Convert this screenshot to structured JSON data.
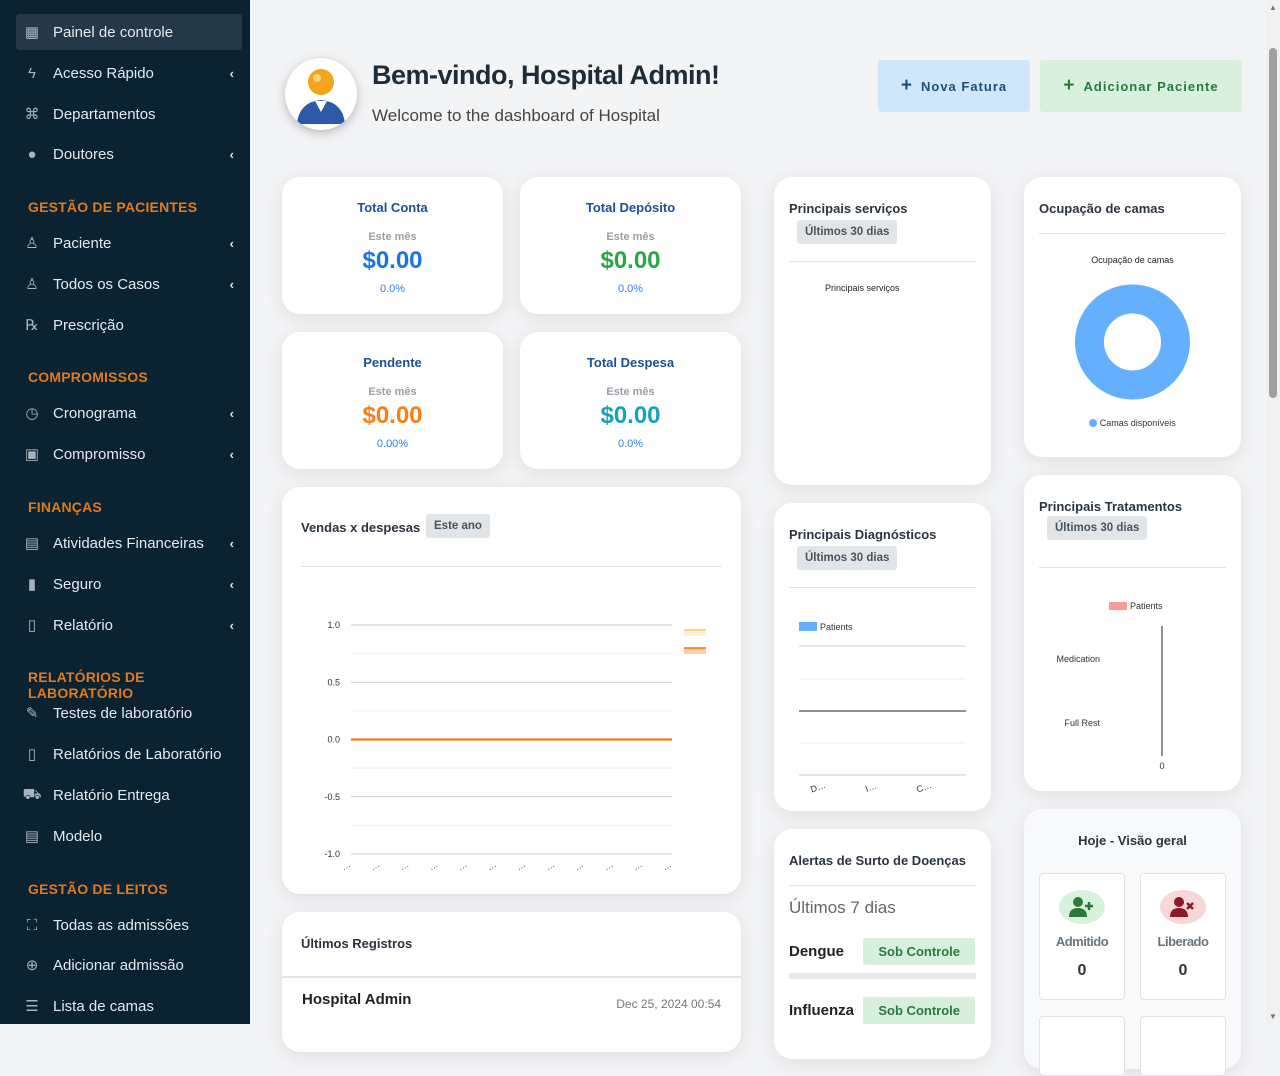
{
  "sidebar": {
    "items": [
      {
        "label": "Painel de controle",
        "icon": "grid-icon",
        "active": true,
        "chevron": false
      },
      {
        "label": "Acesso Rápido",
        "icon": "bolt-icon",
        "chevron": true
      },
      {
        "label": "Departamentos",
        "icon": "sitemap-icon",
        "chevron": false
      },
      {
        "label": "Doutores",
        "icon": "doctor-icon",
        "chevron": true
      },
      {
        "label": "Paciente",
        "icon": "user-icon",
        "chevron": true
      },
      {
        "label": "Todos os Casos",
        "icon": "user-icon",
        "chevron": true
      },
      {
        "label": "Prescrição",
        "icon": "prescription-icon",
        "chevron": false
      },
      {
        "label": "Cronograma",
        "icon": "clock-icon",
        "chevron": true
      },
      {
        "label": "Compromisso",
        "icon": "calendar-check-icon",
        "chevron": true
      },
      {
        "label": "Atividades Financeiras",
        "icon": "money-icon",
        "chevron": true
      },
      {
        "label": "Seguro",
        "icon": "file-icon",
        "chevron": true
      },
      {
        "label": "Relatório",
        "icon": "file-medical-icon",
        "chevron": true
      },
      {
        "label": "Testes de laboratório",
        "icon": "eyedropper-icon",
        "chevron": false
      },
      {
        "label": "Relatórios de Laboratório",
        "icon": "file-waveform-icon",
        "chevron": false
      },
      {
        "label": "Relatório Entrega",
        "icon": "truck-icon",
        "chevron": false
      },
      {
        "label": "Modelo",
        "icon": "document-icon",
        "chevron": false
      },
      {
        "label": "Todas as admissões",
        "icon": "bed-icon",
        "chevron": false
      },
      {
        "label": "Adicionar admissão",
        "icon": "plus-circle-icon",
        "chevron": false
      },
      {
        "label": "Lista de camas",
        "icon": "list-icon",
        "chevron": false
      }
    ],
    "headers": [
      "GESTÃO DE PACIENTES",
      "COMPROMISSOS",
      "FINANÇAS",
      "RELATÓRIOS DE LABORATÓRIO",
      "GESTÃO DE LEITOS"
    ]
  },
  "header": {
    "title": "Bem-vindo, Hospital Admin!",
    "subtitle": "Welcome to the dashboard of Hospital",
    "new_invoice": "Nova Fatura",
    "add_patient": "Adicionar Paciente"
  },
  "stats": [
    {
      "title": "Total Conta",
      "period": "Este mês",
      "value": "$0.00",
      "percent": "0.0%",
      "color": "#1a73e8"
    },
    {
      "title": "Total Depósito",
      "period": "Este mês",
      "value": "$0.00",
      "percent": "0.0%",
      "color": "#28a745"
    },
    {
      "title": "Pendente",
      "period": "Este mês",
      "value": "$0.00",
      "percent": "0.00%",
      "color": "#fd7e14"
    },
    {
      "title": "Total Despesa",
      "period": "Este mês",
      "value": "$0.00",
      "percent": "0.0%",
      "color": "#17a2b8"
    }
  ],
  "sales": {
    "title": "Vendas x despesas",
    "badge": "Este ano"
  },
  "records": {
    "title": "Últimos Registros",
    "name": "Hospital Admin",
    "date": "Dec 25, 2024 00:54"
  },
  "services": {
    "title": "Principais serviços",
    "badge": "Últimos 30 dias",
    "chart_title": "Principais serviços"
  },
  "beds": {
    "title": "Ocupação de camas",
    "chart_title": "Ocupação de camas",
    "legend": "Camas disponíveis"
  },
  "diagnostics": {
    "title": "Principais Diagnósticos",
    "badge": "Últimos 30 dias"
  },
  "treatments": {
    "title": "Principais Tratamentos",
    "badge": "Últimos 30 dias"
  },
  "alerts": {
    "title": "Alertas de Surto de Doenças",
    "period": "Últimos 7 dias",
    "items": [
      {
        "name": "Dengue",
        "status": "Sob Controle"
      },
      {
        "name": "Influenza",
        "status": "Sob Controle"
      }
    ]
  },
  "today": {
    "title": "Hoje - Visão geral",
    "admitted": {
      "label": "Admitido",
      "value": "0"
    },
    "discharged": {
      "label": "Liberado",
      "value": "0"
    }
  },
  "chart_data": [
    {
      "type": "line",
      "title": "",
      "ylim": [
        -1,
        1
      ],
      "yticks": [
        "1.0",
        "0.5",
        "0.0",
        "-0.5",
        "-1.0"
      ],
      "categories": [
        "…",
        "…",
        "…",
        "…",
        "…",
        "…",
        "…",
        "…",
        "…",
        "…",
        "…",
        "…"
      ],
      "series": [
        {
          "values": [
            0,
            0,
            0,
            0,
            0,
            0,
            0,
            0,
            0,
            0,
            0,
            0
          ],
          "color": "#ff6a00"
        },
        {
          "values": [
            0,
            0,
            0,
            0,
            0,
            0,
            0,
            0,
            0,
            0,
            0,
            0
          ],
          "color": "#ffc46b"
        }
      ],
      "grid": true,
      "legend": "right"
    },
    {
      "type": "pie",
      "title": "Ocupação de camas",
      "series": [
        {
          "name": "Camas disponíveis",
          "value": 1,
          "color": "#64b0ff"
        }
      ],
      "legend": "bottom"
    },
    {
      "type": "bar",
      "title": "",
      "series": [
        {
          "name": "Patients",
          "color": "#64b0ff",
          "values": [
            0,
            0,
            0
          ]
        }
      ],
      "categories": [
        "D…",
        "I…",
        "C…"
      ],
      "legend": "top-left"
    },
    {
      "type": "bar",
      "orientation": "horizontal",
      "series": [
        {
          "name": "Patients",
          "color": "#ff9a9a",
          "values": [
            0,
            0
          ]
        }
      ],
      "categories": [
        "Medication",
        "Full Rest"
      ],
      "xticks": [
        "0"
      ],
      "legend": "top"
    }
  ]
}
